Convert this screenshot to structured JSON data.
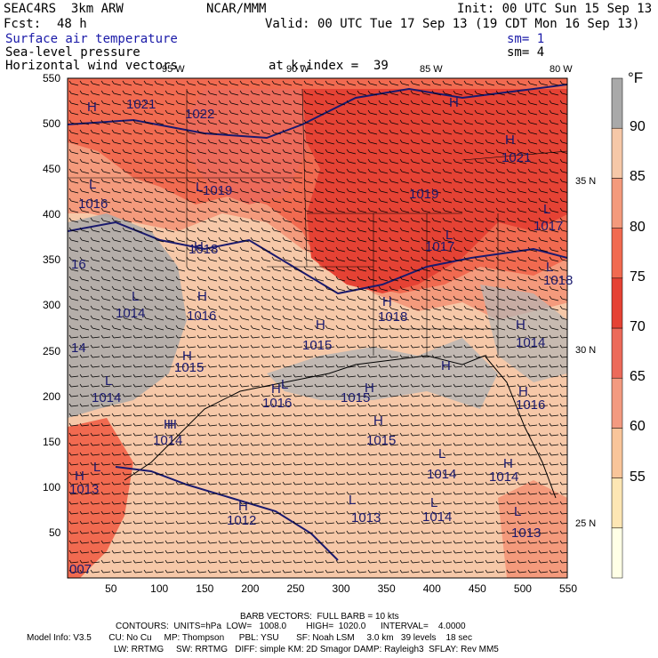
{
  "header": {
    "model": "SEAC4RS  3km ARW",
    "center": "NCAR/MMM",
    "init": "Init: 00 UTC Sun 15 Sep 13",
    "fcst_label": "Fcst:",
    "fcst_value": "48 h",
    "valid": "Valid: 00 UTC Tue 17 Sep 13 (19 CDT Mon 16 Sep 13)",
    "field1": "Surface air temperature",
    "field1_sm": "sm= 1",
    "field2": "Sea-level pressure",
    "field2_sm": "sm= 4",
    "field3": "Horizontal wind vectors",
    "kindex": "at k-index =  39"
  },
  "lon_labels_top": [
    "95 W",
    "90 W",
    "85 W",
    "80 W"
  ],
  "lat_labels_right": [
    "35 N",
    "30 N",
    "25 N"
  ],
  "x_ticks": [
    "50",
    "100",
    "150",
    "200",
    "250",
    "300",
    "350",
    "400",
    "450",
    "500",
    "550"
  ],
  "y_ticks": [
    "550",
    "500",
    "450",
    "400",
    "350",
    "300",
    "250",
    "200",
    "150",
    "100",
    "50"
  ],
  "colorbar": {
    "unit": "°F",
    "labels": [
      "90",
      "85",
      "80",
      "75",
      "70",
      "65",
      "60",
      "55"
    ],
    "colors": [
      "#ffffe6",
      "#fde6b4",
      "#f9c59a",
      "#f39a80",
      "#ec6a5a",
      "#e54234",
      "#f16a50",
      "#f49a7c",
      "#f6c8a8",
      "#a9a9a9"
    ]
  },
  "pressure_labels": [
    {
      "t": "1021"
    },
    {
      "t": "1022"
    },
    {
      "t": "1019"
    },
    {
      "t": "1016"
    },
    {
      "t": "1018"
    },
    {
      "t": "1014"
    },
    {
      "t": "1016"
    },
    {
      "t": "1015"
    },
    {
      "t": "1015"
    },
    {
      "t": "1014"
    },
    {
      "t": "1016"
    },
    {
      "t": "1014"
    },
    {
      "t": "1015"
    },
    {
      "t": "1015"
    },
    {
      "t": "1014"
    },
    {
      "t": "1013"
    },
    {
      "t": "1012"
    },
    {
      "t": "1013"
    },
    {
      "t": "1014"
    },
    {
      "t": "1014"
    },
    {
      "t": "1013"
    },
    {
      "t": "1019"
    },
    {
      "t": "1017"
    },
    {
      "t": "1018"
    },
    {
      "t": "1017"
    },
    {
      "t": "1021"
    },
    {
      "t": "1014"
    },
    {
      "t": "1016"
    },
    {
      "t": "16"
    },
    {
      "t": "14"
    },
    {
      "t": "1018"
    },
    {
      "t": "007"
    }
  ],
  "hl_markers": [
    "L",
    "H",
    "L",
    "H",
    "H",
    "L",
    "H",
    "H",
    "L",
    "H",
    "L",
    "L",
    "H",
    "L",
    "L",
    "H",
    "H",
    "H",
    "L",
    "H",
    "H",
    "H",
    "L",
    "H",
    "L",
    "L",
    "H",
    "H",
    "H",
    "H",
    "H",
    "L"
  ],
  "footer": {
    "barb": "BARB VECTORS:  FULL BARB = 10 kts",
    "contours": "CONTOURS:  UNITS=hPa  LOW=   1008.0        HIGH=  1020.0      INTERVAL=    4.0000",
    "info1": "Model Info: V3.5       CU: No Cu     MP: Thompson      PBL: YSU       SF: Noah LSM     3.0 km   39 levels    18 sec",
    "info2": "LW: RRTMG     SW: RRTMG   DIFF: simple KM: 2D Smagor DAMP: Rayleigh3  SFLAY: Rev MM5"
  }
}
